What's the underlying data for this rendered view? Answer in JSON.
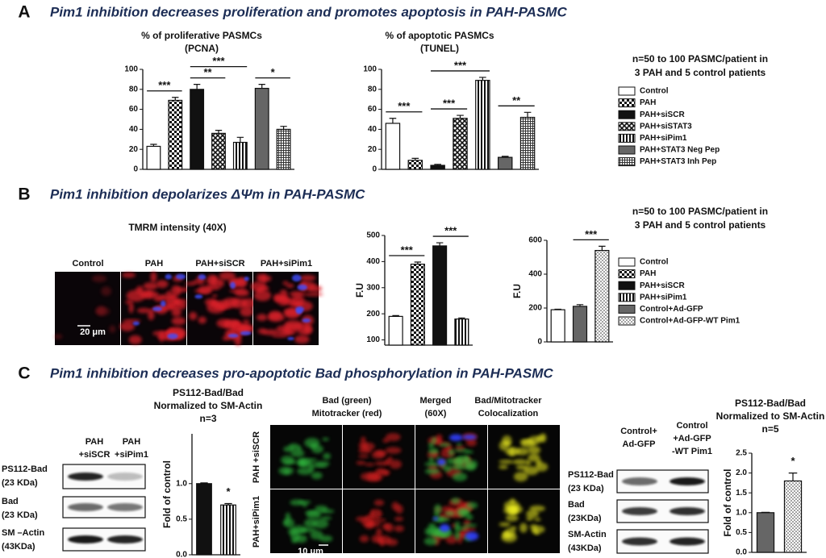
{
  "panels": [
    {
      "letter": "A",
      "title": "Pim1 inhibition decreases proliferation and promotes apoptosis in PAH-PASMC"
    },
    {
      "letter": "B",
      "title": "Pim1 inhibition depolarizes ΔΨm in PAH-PASMC"
    },
    {
      "letter": "C",
      "title": "Pim1 inhibition decreases pro-apoptotic Bad phosphorylation in PAH-PASMC"
    }
  ],
  "sample_notes": [
    [
      "n=50 to 100 PASMC/patient  in",
      "3 PAH and 5 control patients"
    ],
    [
      "n=50 to 100 PASMC/patient  in",
      "3 PAH and 5 control patients"
    ]
  ],
  "tmrm": {
    "title": "TMRM intensity (40X)",
    "columns": [
      "Control",
      "PAH",
      "PAH+siSCR",
      "PAH+siPim1"
    ],
    "scale_bar": "20 μm"
  },
  "blot_left": {
    "columns": [
      [
        "PAH",
        "+siSCR"
      ],
      [
        "PAH",
        "+siPim1"
      ]
    ],
    "rows": [
      [
        "PS112-Bad",
        "(23 KDa)"
      ],
      [
        "Bad",
        "(23 KDa)"
      ],
      [
        "SM –Actin",
        "(43KDa)"
      ]
    ]
  },
  "confocal": {
    "columns": [
      [
        "Bad (green)",
        "Mitotracker (red)"
      ],
      [
        "Merged",
        "(60X)"
      ],
      [
        "Bad/Mitotracker",
        "Colocalization"
      ]
    ],
    "rows": [
      "PAH +siSCR",
      "PAH+siPim1"
    ],
    "scale_bar": "10 μm"
  },
  "blot_right": {
    "columns": [
      [
        "Control+",
        "Ad-GFP"
      ],
      [
        "Control",
        "+Ad-GFP",
        "-WT Pim1"
      ]
    ],
    "rows": [
      [
        "PS112-Bad",
        "(23 KDa)"
      ],
      [
        "Bad",
        "(23KDa)"
      ],
      [
        "SM-Actin",
        "(43KDa)"
      ]
    ]
  },
  "chart_data": [
    {
      "type": "bar",
      "title_lines": [
        "% of proliferative PASMCs",
        "(PCNA)"
      ],
      "ylim": [
        0,
        100
      ],
      "yticks": [
        0,
        20,
        40,
        60,
        80,
        100
      ],
      "series": [
        {
          "name": "Control",
          "pattern": "white",
          "values": [
            23
          ],
          "errors": [
            2
          ]
        },
        {
          "name": "PAH",
          "pattern": "checker",
          "values": [
            69
          ],
          "errors": [
            3
          ]
        },
        {
          "name": "PAH+siSCR",
          "pattern": "black",
          "values": [
            80
          ],
          "errors": [
            5
          ]
        },
        {
          "name": "PAH+siSTAT3",
          "pattern": "diamond",
          "values": [
            36
          ],
          "errors": [
            3
          ]
        },
        {
          "name": "PAH+siPim1",
          "pattern": "vstripe",
          "values": [
            27
          ],
          "errors": [
            5
          ]
        },
        {
          "name": "PAH+STAT3 Neg Pep",
          "pattern": "gray",
          "values": [
            81
          ],
          "errors": [
            4
          ]
        },
        {
          "name": "PAH+STAT3 Inh Pep",
          "pattern": "grid",
          "values": [
            40
          ],
          "errors": [
            3
          ]
        }
      ],
      "annotations": [
        {
          "text": "***",
          "from": 0,
          "to": 1
        },
        {
          "text": "**",
          "from": 2,
          "to": 3
        },
        {
          "text": "***",
          "from": 2,
          "to": 4
        },
        {
          "text": "*",
          "from": 5,
          "to": 6
        }
      ]
    },
    {
      "type": "bar",
      "title_lines": [
        "% of apoptotic PASMCs",
        "(TUNEL)"
      ],
      "ylim": [
        0,
        100
      ],
      "yticks": [
        0,
        20,
        40,
        60,
        80,
        100
      ],
      "series": [
        {
          "pattern": "white",
          "values": [
            46
          ],
          "errors": [
            5
          ]
        },
        {
          "pattern": "checker",
          "values": [
            9
          ],
          "errors": [
            2
          ]
        },
        {
          "pattern": "black",
          "values": [
            4
          ],
          "errors": [
            1
          ]
        },
        {
          "pattern": "diamond",
          "values": [
            51
          ],
          "errors": [
            3
          ]
        },
        {
          "pattern": "vstripe",
          "values": [
            89
          ],
          "errors": [
            3
          ]
        },
        {
          "pattern": "gray",
          "values": [
            12
          ],
          "errors": [
            1
          ]
        },
        {
          "pattern": "grid",
          "values": [
            52
          ],
          "errors": [
            5
          ]
        }
      ],
      "annotations": [
        {
          "text": "***",
          "from": 0,
          "to": 1
        },
        {
          "text": "***",
          "from": 2,
          "to": 3
        },
        {
          "text": "***",
          "from": 2,
          "to": 4
        },
        {
          "text": "**",
          "from": 5,
          "to": 6
        }
      ]
    },
    {
      "type": "bar",
      "y_label": "F.U",
      "ylim": [
        80,
        500
      ],
      "yticks": [
        100,
        200,
        300,
        400,
        500
      ],
      "series": [
        {
          "name": "Control",
          "pattern": "white",
          "values": [
            190
          ],
          "errors": [
            3
          ]
        },
        {
          "name": "PAH",
          "pattern": "checker",
          "values": [
            390
          ],
          "errors": [
            8
          ]
        },
        {
          "name": "PAH+siSCR",
          "pattern": "black",
          "values": [
            460
          ],
          "errors": [
            12
          ]
        },
        {
          "name": "PAH+siPim1",
          "pattern": "vstripe",
          "values": [
            180
          ],
          "errors": [
            4
          ]
        }
      ],
      "annotations": [
        {
          "text": "***",
          "from": 0,
          "to": 1
        },
        {
          "text": "***",
          "from": 2,
          "to": 3
        }
      ]
    },
    {
      "type": "bar",
      "y_label": "F.U",
      "ylim": [
        0,
        600
      ],
      "yticks": [
        0,
        200,
        400,
        600
      ],
      "series": [
        {
          "pattern": "white",
          "values": [
            190
          ],
          "errors": [
            3
          ]
        },
        {
          "name": "Control+Ad-GFP",
          "pattern": "gray",
          "values": [
            210
          ],
          "errors": [
            10
          ]
        },
        {
          "name": "Control+Ad-GFP-WT Pim1",
          "pattern": "dots",
          "values": [
            540
          ],
          "errors": [
            25
          ]
        }
      ],
      "annotations": [
        {
          "text": "***",
          "from": 1,
          "to": 2
        }
      ]
    },
    {
      "type": "bar",
      "title_lines": [
        "PS112-Bad/Bad",
        "Normalized to SM-Actin",
        "n=3"
      ],
      "y_label": "Fold of control",
      "ylim": [
        0,
        1.7
      ],
      "yticks": [
        {
          "value": 0,
          "label": "0.0"
        },
        0.5,
        {
          "value": 1,
          "label": "1.0"
        }
      ],
      "series": [
        {
          "pattern": "black",
          "values": [
            1.0
          ],
          "errors": [
            0.01
          ]
        },
        {
          "pattern": "vstripe",
          "values": [
            0.7
          ],
          "errors": [
            0.02
          ]
        }
      ],
      "annotations": [
        {
          "text": "*",
          "from": 1,
          "to": 1
        }
      ]
    },
    {
      "type": "bar",
      "title_lines": [
        "PS112-Bad/Bad",
        "Normalized to SM-Actin",
        "n=5"
      ],
      "y_label": "Fold of control",
      "ylim": [
        0,
        2.5
      ],
      "yticks": [
        {
          "value": 0,
          "label": "0.0"
        },
        0.5,
        {
          "value": 1,
          "label": "1.0"
        },
        1.5,
        {
          "value": 2,
          "label": "2.0"
        },
        2.5
      ],
      "series": [
        {
          "pattern": "gray",
          "values": [
            1.0
          ],
          "errors": [
            0.01
          ]
        },
        {
          "pattern": "dots",
          "values": [
            1.8
          ],
          "errors": [
            0.2
          ]
        }
      ],
      "annotations": [
        {
          "text": "*",
          "from": 1,
          "to": 1
        }
      ]
    }
  ]
}
